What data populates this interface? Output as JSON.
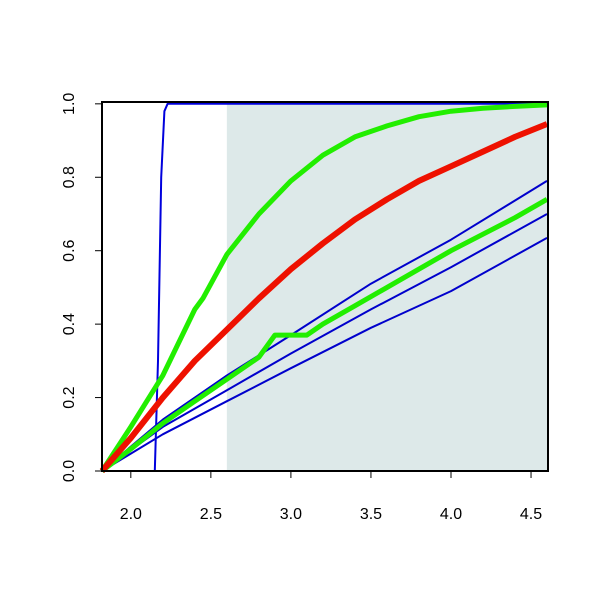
{
  "chart_data": {
    "type": "line",
    "xlim": [
      1.82,
      4.606
    ],
    "ylim": [
      0,
      1.005
    ],
    "xticks": [
      2.0,
      2.5,
      3.0,
      3.5,
      4.0,
      4.5
    ],
    "yticks": [
      0.0,
      0.2,
      0.4,
      0.6,
      0.8,
      1.0
    ],
    "shaded_region": {
      "xlim": [
        2.6,
        4.606
      ],
      "ylim": [
        0,
        1.005
      ],
      "color": "#dde9e9"
    },
    "series": [
      {
        "color": "#0000dd",
        "width": 2,
        "x": [
          1.82,
          2.15,
          2.17,
          2.19,
          2.21,
          2.23,
          4.6
        ],
        "values": [
          0,
          0,
          0.3,
          0.8,
          0.98,
          1,
          1
        ]
      },
      {
        "color": "#0000cc",
        "width": 2,
        "x": [
          1.82,
          2.2,
          2.6,
          3.0,
          3.5,
          4.0,
          4.6
        ],
        "values": [
          0,
          0.14,
          0.26,
          0.37,
          0.51,
          0.63,
          0.79
        ]
      },
      {
        "color": "#0000cc",
        "width": 2,
        "x": [
          1.82,
          2.2,
          2.6,
          3.0,
          3.5,
          4.0,
          4.6
        ],
        "values": [
          0,
          0.12,
          0.22,
          0.32,
          0.44,
          0.555,
          0.7
        ]
      },
      {
        "color": "#0000cc",
        "width": 2,
        "x": [
          1.82,
          2.2,
          2.6,
          3.0,
          3.5,
          4.0,
          4.6
        ],
        "values": [
          0,
          0.1,
          0.19,
          0.28,
          0.39,
          0.49,
          0.635
        ]
      },
      {
        "color": "#22ee00",
        "width": 5,
        "x": [
          1.82,
          2.0,
          2.2,
          2.4,
          2.6,
          2.8,
          2.9,
          3.1,
          3.2,
          3.4,
          3.6,
          3.8,
          4.0,
          4.2,
          4.4,
          4.6
        ],
        "values": [
          0,
          0.06,
          0.13,
          0.19,
          0.25,
          0.31,
          0.37,
          0.37,
          0.4,
          0.45,
          0.5,
          0.55,
          0.6,
          0.645,
          0.69,
          0.74
        ]
      },
      {
        "color": "#22ee00",
        "width": 5,
        "x": [
          1.82,
          2.0,
          2.2,
          2.4,
          2.45,
          2.6,
          2.8,
          3.0,
          3.2,
          3.4,
          3.6,
          3.8,
          4.0,
          4.2,
          4.4,
          4.6
        ],
        "values": [
          0,
          0.12,
          0.26,
          0.44,
          0.47,
          0.59,
          0.7,
          0.79,
          0.86,
          0.91,
          0.94,
          0.965,
          0.98,
          0.988,
          0.993,
          0.997
        ]
      },
      {
        "color": "#ee1100",
        "width": 6,
        "x": [
          1.82,
          2.0,
          2.2,
          2.4,
          2.6,
          2.8,
          3.0,
          3.2,
          3.4,
          3.6,
          3.8,
          4.0,
          4.2,
          4.4,
          4.6
        ],
        "values": [
          0,
          0.09,
          0.2,
          0.3,
          0.385,
          0.47,
          0.55,
          0.62,
          0.685,
          0.74,
          0.79,
          0.83,
          0.87,
          0.91,
          0.945
        ]
      }
    ]
  }
}
